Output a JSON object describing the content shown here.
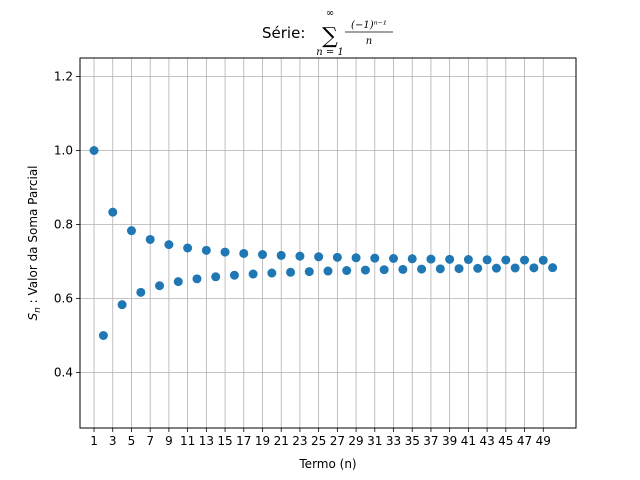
{
  "chart_data": {
    "type": "scatter",
    "title_prefix": "Série: ",
    "title_math": {
      "sum_symbol": "∑",
      "upper": "∞",
      "lower": "n = 1",
      "numerator": "(−1)ⁿ⁻¹",
      "denominator": "n"
    },
    "xlabel": "Termo (n)",
    "ylabel_math": "S",
    "ylabel_sub": "n",
    "ylabel_text": " : Valor da Soma Parcial",
    "xlim": [
      -0.5,
      52.5
    ],
    "ylim": [
      0.25,
      1.25
    ],
    "x_ticks": [
      1,
      3,
      5,
      7,
      9,
      11,
      13,
      15,
      17,
      19,
      21,
      23,
      25,
      27,
      29,
      31,
      33,
      35,
      37,
      39,
      41,
      43,
      45,
      47,
      49
    ],
    "y_ticks": [
      0.4,
      0.6,
      0.8,
      1.0,
      1.2
    ],
    "y_tick_labels": [
      "0.4",
      "0.6",
      "0.8",
      "1.0",
      "1.2"
    ],
    "grid": true,
    "marker_color": "#1f77b4",
    "series": [
      {
        "name": "Sn",
        "x": [
          1,
          2,
          3,
          4,
          5,
          6,
          7,
          8,
          9,
          10,
          11,
          12,
          13,
          14,
          15,
          16,
          17,
          18,
          19,
          20,
          21,
          22,
          23,
          24,
          25,
          26,
          27,
          28,
          29,
          30,
          31,
          32,
          33,
          34,
          35,
          36,
          37,
          38,
          39,
          40,
          41,
          42,
          43,
          44,
          45,
          46,
          47,
          48,
          49,
          50
        ],
        "y": [
          1.0,
          0.5,
          0.8333,
          0.5833,
          0.7833,
          0.6167,
          0.7595,
          0.6345,
          0.7456,
          0.6456,
          0.7365,
          0.6532,
          0.7301,
          0.6587,
          0.7254,
          0.6629,
          0.7217,
          0.6662,
          0.7188,
          0.6688,
          0.7164,
          0.6709,
          0.7144,
          0.6727,
          0.7127,
          0.6742,
          0.7113,
          0.6756,
          0.7101,
          0.6768,
          0.709,
          0.6778,
          0.7081,
          0.6787,
          0.7073,
          0.6795,
          0.7065,
          0.6802,
          0.7059,
          0.6809,
          0.7053,
          0.6815,
          0.7047,
          0.682,
          0.7042,
          0.6825,
          0.7038,
          0.6829,
          0.7033,
          0.6833
        ]
      }
    ]
  }
}
